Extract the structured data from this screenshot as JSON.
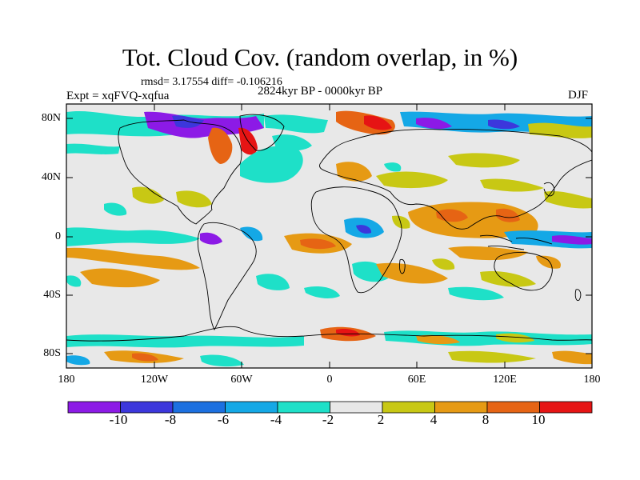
{
  "title": "Tot. Cloud Cov. (random overlap, in %)",
  "stats": "rmsd= 3.17554 diff= -0.106216",
  "experiment": "Expt = xqFVQ-xqfua",
  "period": "2824kyr BP - 0000kyr BP",
  "season": "DJF",
  "lat_labels": [
    "80N",
    "40N",
    "0",
    "40S",
    "80S"
  ],
  "lon_labels": [
    "180",
    "120W",
    "60W",
    "0",
    "60E",
    "120E",
    "180"
  ],
  "colorbar": {
    "colors": [
      "#8c1ae6",
      "#3c37dc",
      "#1c70e0",
      "#14a8e6",
      "#1ee0c8",
      "#e8e8e8",
      "#c8c814",
      "#e69a14",
      "#e66414",
      "#e61414"
    ],
    "labels": [
      "-10",
      "-8",
      "-6",
      "-4",
      "-2",
      "2",
      "4",
      "8",
      "10"
    ]
  }
}
